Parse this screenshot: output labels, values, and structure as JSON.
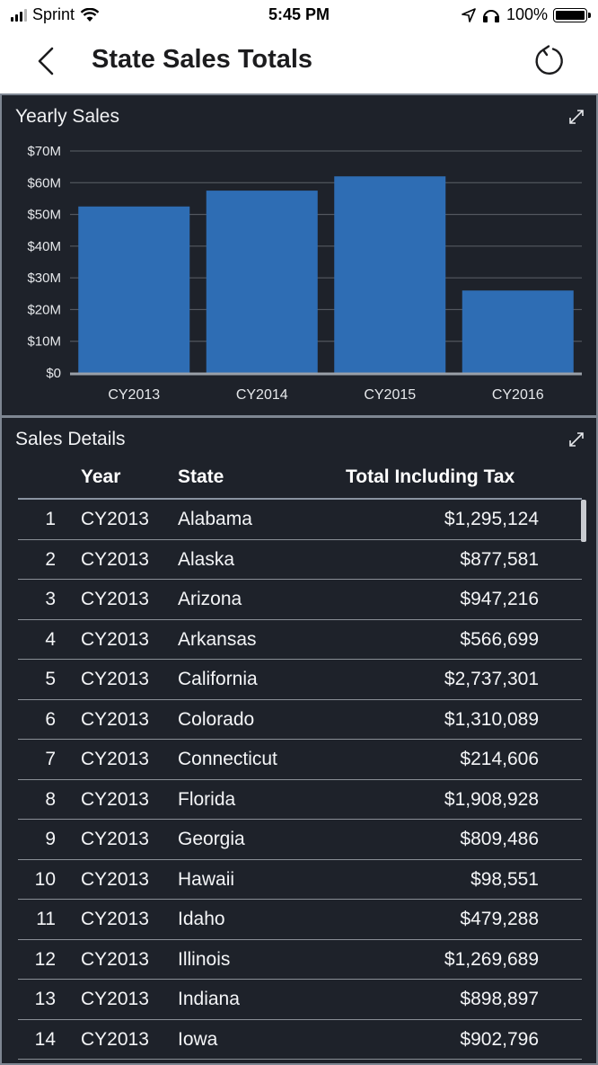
{
  "status_bar": {
    "carrier": "Sprint",
    "time": "5:45 PM",
    "battery": "100%"
  },
  "nav": {
    "title": "State Sales Totals",
    "back_icon": "chevron-left-icon",
    "refresh_icon": "refresh-icon"
  },
  "colors": {
    "bar": "#2e6db4",
    "panel": "#1e222a",
    "gridline": "#5c6168"
  },
  "chart_panel": {
    "title": "Yearly Sales",
    "expand_icon": "expand-icon"
  },
  "chart_data": {
    "type": "bar",
    "title": "Yearly Sales",
    "categories": [
      "CY2013",
      "CY2014",
      "CY2015",
      "CY2016"
    ],
    "values": [
      52.5,
      57.5,
      62.0,
      26.0
    ],
    "value_unit": "millions USD",
    "ylim": [
      0,
      70
    ],
    "yticks": [
      0,
      10,
      20,
      30,
      40,
      50,
      60,
      70
    ],
    "ytick_labels": [
      "$0",
      "$10M",
      "$20M",
      "$30M",
      "$40M",
      "$50M",
      "$60M",
      "$70M"
    ],
    "grid": true,
    "legend": "none"
  },
  "table_panel": {
    "title": "Sales Details",
    "expand_icon": "expand-icon",
    "columns": [
      "Year",
      "State",
      "Total Including Tax"
    ],
    "rows": [
      {
        "index": "1",
        "year": "CY2013",
        "state": "Alabama",
        "total": "$1,295,124"
      },
      {
        "index": "2",
        "year": "CY2013",
        "state": "Alaska",
        "total": "$877,581"
      },
      {
        "index": "3",
        "year": "CY2013",
        "state": "Arizona",
        "total": "$947,216"
      },
      {
        "index": "4",
        "year": "CY2013",
        "state": "Arkansas",
        "total": "$566,699"
      },
      {
        "index": "5",
        "year": "CY2013",
        "state": "California",
        "total": "$2,737,301"
      },
      {
        "index": "6",
        "year": "CY2013",
        "state": "Colorado",
        "total": "$1,310,089"
      },
      {
        "index": "7",
        "year": "CY2013",
        "state": "Connecticut",
        "total": "$214,606"
      },
      {
        "index": "8",
        "year": "CY2013",
        "state": "Florida",
        "total": "$1,908,928"
      },
      {
        "index": "9",
        "year": "CY2013",
        "state": "Georgia",
        "total": "$809,486"
      },
      {
        "index": "10",
        "year": "CY2013",
        "state": "Hawaii",
        "total": "$98,551"
      },
      {
        "index": "11",
        "year": "CY2013",
        "state": "Idaho",
        "total": "$479,288"
      },
      {
        "index": "12",
        "year": "CY2013",
        "state": "Illinois",
        "total": "$1,269,689"
      },
      {
        "index": "13",
        "year": "CY2013",
        "state": "Indiana",
        "total": "$898,897"
      },
      {
        "index": "14",
        "year": "CY2013",
        "state": "Iowa",
        "total": "$902,796"
      }
    ]
  }
}
